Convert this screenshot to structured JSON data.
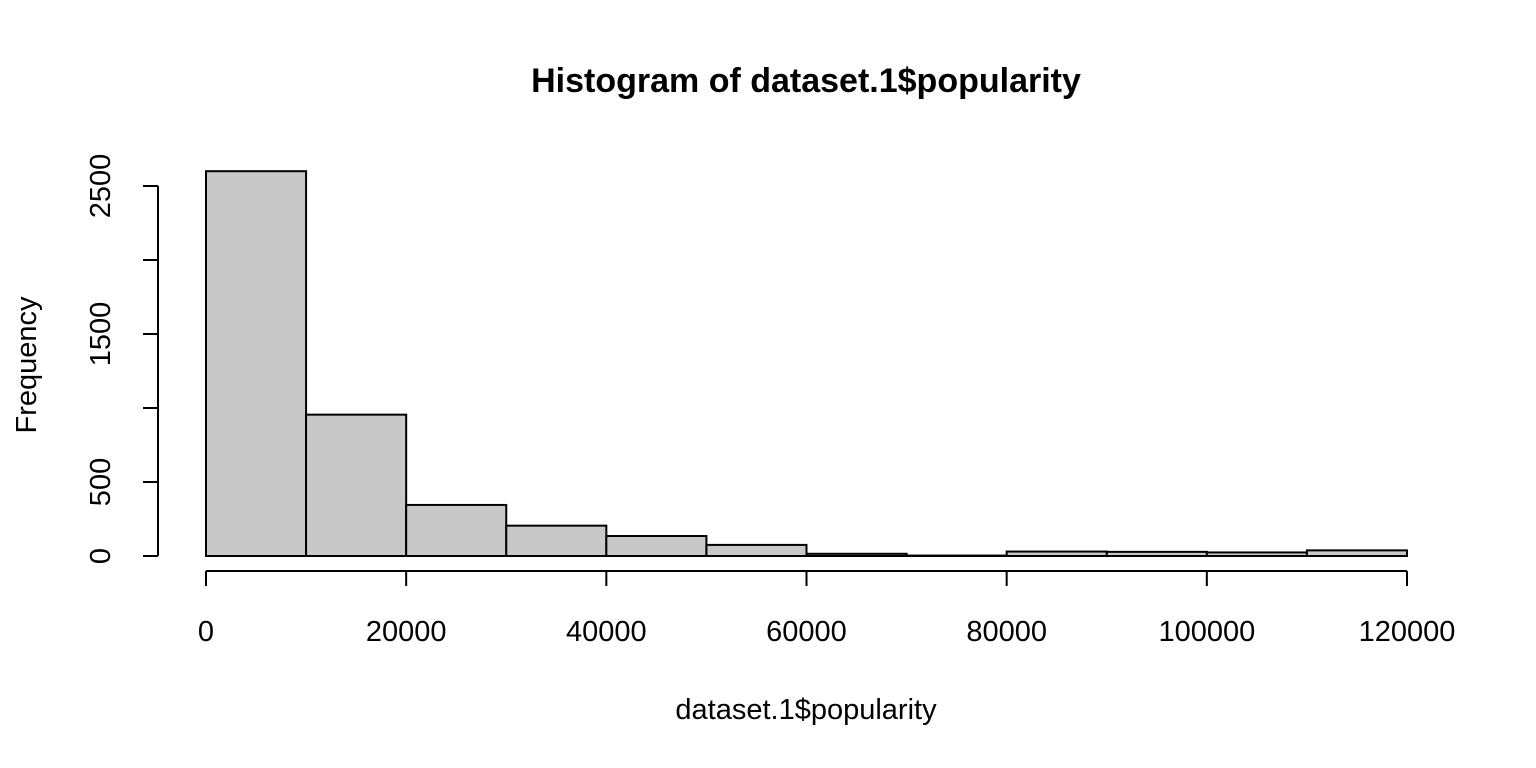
{
  "chart_data": {
    "type": "bar",
    "title": "Histogram of dataset.1$popularity",
    "xlabel": "dataset.1$popularity",
    "ylabel": "Frequency",
    "bins": [
      {
        "start": 0,
        "end": 10000,
        "count": 2600
      },
      {
        "start": 10000,
        "end": 20000,
        "count": 955
      },
      {
        "start": 20000,
        "end": 30000,
        "count": 345
      },
      {
        "start": 30000,
        "end": 40000,
        "count": 205
      },
      {
        "start": 40000,
        "end": 50000,
        "count": 135
      },
      {
        "start": 50000,
        "end": 60000,
        "count": 75
      },
      {
        "start": 60000,
        "end": 70000,
        "count": 15
      },
      {
        "start": 70000,
        "end": 80000,
        "count": 3
      },
      {
        "start": 80000,
        "end": 90000,
        "count": 30
      },
      {
        "start": 90000,
        "end": 100000,
        "count": 28
      },
      {
        "start": 100000,
        "end": 110000,
        "count": 24
      },
      {
        "start": 110000,
        "end": 120000,
        "count": 38
      }
    ],
    "xlim": [
      0,
      120000
    ],
    "ylim": [
      0,
      2500
    ],
    "x_ticks": [
      0,
      20000,
      40000,
      60000,
      80000,
      100000,
      120000
    ],
    "x_tick_labels": [
      "0",
      "20000",
      "40000",
      "60000",
      "80000",
      "100000",
      "120000"
    ],
    "y_ticks": [
      0,
      500,
      1000,
      1500,
      2000,
      2500
    ],
    "y_tick_labels": [
      "0",
      "500",
      "",
      "1500",
      "",
      "2500"
    ],
    "grid": false,
    "bar_color": "#c8c8c8",
    "edge_color": "#000000"
  }
}
